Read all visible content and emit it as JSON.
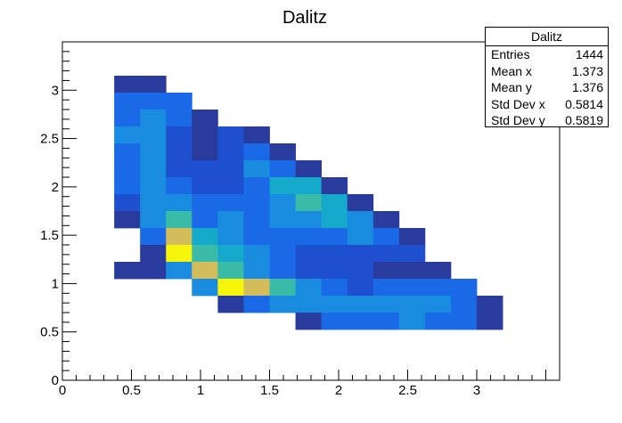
{
  "chart_data": {
    "type": "heatmap",
    "title": "Dalitz",
    "xlabel": "",
    "ylabel": "",
    "xlim": [
      0,
      3.6
    ],
    "ylim": [
      0,
      3.5
    ],
    "x_ticks": [
      "0",
      "0.5",
      "1",
      "1.5",
      "2",
      "2.5",
      "3"
    ],
    "y_ticks": [
      "0",
      "0.5",
      "1",
      "1.5",
      "2",
      "2.5",
      "3"
    ],
    "bin_width_x": 0.1875,
    "bin_width_y": 0.175,
    "colorscale": [
      "#2a3b9e",
      "#1d4fcf",
      "#1a6ae8",
      "#1a8ce0",
      "#15aacb",
      "#39bba8",
      "#d2bd5a",
      "#f6f50a"
    ],
    "level_max": 7,
    "cells": [
      {
        "x": 0.375,
        "y": 2.975,
        "level": 0
      },
      {
        "x": 0.5625,
        "y": 2.975,
        "level": 0
      },
      {
        "x": 0.375,
        "y": 2.8,
        "level": 2
      },
      {
        "x": 0.5625,
        "y": 2.8,
        "level": 2
      },
      {
        "x": 0.75,
        "y": 2.8,
        "level": 2
      },
      {
        "x": 0.375,
        "y": 2.625,
        "level": 2
      },
      {
        "x": 0.5625,
        "y": 2.625,
        "level": 3
      },
      {
        "x": 0.75,
        "y": 2.625,
        "level": 2
      },
      {
        "x": 0.9375,
        "y": 2.625,
        "level": 0
      },
      {
        "x": 0.375,
        "y": 2.45,
        "level": 3
      },
      {
        "x": 0.5625,
        "y": 2.45,
        "level": 3
      },
      {
        "x": 0.75,
        "y": 2.45,
        "level": 1
      },
      {
        "x": 0.9375,
        "y": 2.45,
        "level": 0
      },
      {
        "x": 1.125,
        "y": 2.45,
        "level": 1
      },
      {
        "x": 1.3125,
        "y": 2.45,
        "level": 0
      },
      {
        "x": 0.375,
        "y": 2.275,
        "level": 2
      },
      {
        "x": 0.5625,
        "y": 2.275,
        "level": 3
      },
      {
        "x": 0.75,
        "y": 2.275,
        "level": 1
      },
      {
        "x": 0.9375,
        "y": 2.275,
        "level": 0
      },
      {
        "x": 1.125,
        "y": 2.275,
        "level": 1
      },
      {
        "x": 1.3125,
        "y": 2.275,
        "level": 2
      },
      {
        "x": 1.5,
        "y": 2.275,
        "level": 0
      },
      {
        "x": 0.375,
        "y": 2.1,
        "level": 2
      },
      {
        "x": 0.5625,
        "y": 2.1,
        "level": 3
      },
      {
        "x": 0.75,
        "y": 2.1,
        "level": 1
      },
      {
        "x": 0.9375,
        "y": 2.1,
        "level": 1
      },
      {
        "x": 1.125,
        "y": 2.1,
        "level": 1
      },
      {
        "x": 1.3125,
        "y": 2.1,
        "level": 3
      },
      {
        "x": 1.5,
        "y": 2.1,
        "level": 2
      },
      {
        "x": 1.6875,
        "y": 2.1,
        "level": 0
      },
      {
        "x": 0.375,
        "y": 1.925,
        "level": 2
      },
      {
        "x": 0.5625,
        "y": 1.925,
        "level": 3
      },
      {
        "x": 0.75,
        "y": 1.925,
        "level": 2
      },
      {
        "x": 0.9375,
        "y": 1.925,
        "level": 1
      },
      {
        "x": 1.125,
        "y": 1.925,
        "level": 1
      },
      {
        "x": 1.3125,
        "y": 1.925,
        "level": 2
      },
      {
        "x": 1.5,
        "y": 1.925,
        "level": 4
      },
      {
        "x": 1.6875,
        "y": 1.925,
        "level": 4
      },
      {
        "x": 1.875,
        "y": 1.925,
        "level": 0
      },
      {
        "x": 0.375,
        "y": 1.75,
        "level": 1
      },
      {
        "x": 0.5625,
        "y": 1.75,
        "level": 3
      },
      {
        "x": 0.75,
        "y": 1.75,
        "level": 3
      },
      {
        "x": 0.9375,
        "y": 1.75,
        "level": 2
      },
      {
        "x": 1.125,
        "y": 1.75,
        "level": 2
      },
      {
        "x": 1.3125,
        "y": 1.75,
        "level": 2
      },
      {
        "x": 1.5,
        "y": 1.75,
        "level": 3
      },
      {
        "x": 1.6875,
        "y": 1.75,
        "level": 5
      },
      {
        "x": 1.875,
        "y": 1.75,
        "level": 4
      },
      {
        "x": 2.0625,
        "y": 1.75,
        "level": 0
      },
      {
        "x": 0.375,
        "y": 1.575,
        "level": 0
      },
      {
        "x": 0.5625,
        "y": 1.575,
        "level": 3
      },
      {
        "x": 0.75,
        "y": 1.575,
        "level": 5
      },
      {
        "x": 0.9375,
        "y": 1.575,
        "level": 2
      },
      {
        "x": 1.125,
        "y": 1.575,
        "level": 3
      },
      {
        "x": 1.3125,
        "y": 1.575,
        "level": 2
      },
      {
        "x": 1.5,
        "y": 1.575,
        "level": 3
      },
      {
        "x": 1.6875,
        "y": 1.575,
        "level": 3
      },
      {
        "x": 1.875,
        "y": 1.575,
        "level": 4
      },
      {
        "x": 2.0625,
        "y": 1.575,
        "level": 3
      },
      {
        "x": 2.25,
        "y": 1.575,
        "level": 0
      },
      {
        "x": 0.5625,
        "y": 1.4,
        "level": 2
      },
      {
        "x": 0.75,
        "y": 1.4,
        "level": 6
      },
      {
        "x": 0.9375,
        "y": 1.4,
        "level": 4
      },
      {
        "x": 1.125,
        "y": 1.4,
        "level": 3
      },
      {
        "x": 1.3125,
        "y": 1.4,
        "level": 2
      },
      {
        "x": 1.5,
        "y": 1.4,
        "level": 2
      },
      {
        "x": 1.6875,
        "y": 1.4,
        "level": 2
      },
      {
        "x": 1.875,
        "y": 1.4,
        "level": 2
      },
      {
        "x": 2.0625,
        "y": 1.4,
        "level": 3
      },
      {
        "x": 2.25,
        "y": 1.4,
        "level": 2
      },
      {
        "x": 2.4375,
        "y": 1.4,
        "level": 0
      },
      {
        "x": 0.5625,
        "y": 1.225,
        "level": 0
      },
      {
        "x": 0.75,
        "y": 1.225,
        "level": 7
      },
      {
        "x": 0.9375,
        "y": 1.225,
        "level": 5
      },
      {
        "x": 1.125,
        "y": 1.225,
        "level": 4
      },
      {
        "x": 1.3125,
        "y": 1.225,
        "level": 3
      },
      {
        "x": 1.5,
        "y": 1.225,
        "level": 2
      },
      {
        "x": 1.6875,
        "y": 1.225,
        "level": 1
      },
      {
        "x": 1.875,
        "y": 1.225,
        "level": 1
      },
      {
        "x": 2.0625,
        "y": 1.225,
        "level": 1
      },
      {
        "x": 2.25,
        "y": 1.225,
        "level": 1
      },
      {
        "x": 2.4375,
        "y": 1.225,
        "level": 1
      },
      {
        "x": 0.375,
        "y": 1.05,
        "level": 0
      },
      {
        "x": 0.5625,
        "y": 1.05,
        "level": 0
      },
      {
        "x": 0.75,
        "y": 1.05,
        "level": 3
      },
      {
        "x": 0.9375,
        "y": 1.05,
        "level": 6
      },
      {
        "x": 1.125,
        "y": 1.05,
        "level": 5
      },
      {
        "x": 1.3125,
        "y": 1.05,
        "level": 3
      },
      {
        "x": 1.5,
        "y": 1.05,
        "level": 2
      },
      {
        "x": 1.6875,
        "y": 1.05,
        "level": 1
      },
      {
        "x": 1.875,
        "y": 1.05,
        "level": 1
      },
      {
        "x": 2.0625,
        "y": 1.05,
        "level": 1
      },
      {
        "x": 2.25,
        "y": 1.05,
        "level": 0
      },
      {
        "x": 2.4375,
        "y": 1.05,
        "level": 0
      },
      {
        "x": 2.625,
        "y": 1.05,
        "level": 0
      },
      {
        "x": 0.9375,
        "y": 0.875,
        "level": 3
      },
      {
        "x": 1.125,
        "y": 0.875,
        "level": 7
      },
      {
        "x": 1.3125,
        "y": 0.875,
        "level": 6
      },
      {
        "x": 1.5,
        "y": 0.875,
        "level": 5
      },
      {
        "x": 1.6875,
        "y": 0.875,
        "level": 3
      },
      {
        "x": 1.875,
        "y": 0.875,
        "level": 2
      },
      {
        "x": 2.0625,
        "y": 0.875,
        "level": 1
      },
      {
        "x": 2.25,
        "y": 0.875,
        "level": 2
      },
      {
        "x": 2.4375,
        "y": 0.875,
        "level": 2
      },
      {
        "x": 2.625,
        "y": 0.875,
        "level": 2
      },
      {
        "x": 2.8125,
        "y": 0.875,
        "level": 2
      },
      {
        "x": 1.125,
        "y": 0.7,
        "level": 0
      },
      {
        "x": 1.3125,
        "y": 0.7,
        "level": 2
      },
      {
        "x": 1.5,
        "y": 0.7,
        "level": 3
      },
      {
        "x": 1.6875,
        "y": 0.7,
        "level": 3
      },
      {
        "x": 1.875,
        "y": 0.7,
        "level": 3
      },
      {
        "x": 2.0625,
        "y": 0.7,
        "level": 3
      },
      {
        "x": 2.25,
        "y": 0.7,
        "level": 3
      },
      {
        "x": 2.4375,
        "y": 0.7,
        "level": 3
      },
      {
        "x": 2.625,
        "y": 0.7,
        "level": 3
      },
      {
        "x": 2.8125,
        "y": 0.7,
        "level": 2
      },
      {
        "x": 3.0,
        "y": 0.7,
        "level": 0
      },
      {
        "x": 1.6875,
        "y": 0.525,
        "level": 0
      },
      {
        "x": 1.875,
        "y": 0.525,
        "level": 2
      },
      {
        "x": 2.0625,
        "y": 0.525,
        "level": 2
      },
      {
        "x": 2.25,
        "y": 0.525,
        "level": 2
      },
      {
        "x": 2.4375,
        "y": 0.525,
        "level": 3
      },
      {
        "x": 2.625,
        "y": 0.525,
        "level": 2
      },
      {
        "x": 2.8125,
        "y": 0.525,
        "level": 2
      },
      {
        "x": 3.0,
        "y": 0.525,
        "level": 0
      }
    ]
  },
  "stats": {
    "title": "Dalitz",
    "rows": [
      {
        "label": "Entries",
        "value": "1444"
      },
      {
        "label": "Mean x",
        "value": "1.373"
      },
      {
        "label": "Mean y",
        "value": "1.376"
      },
      {
        "label": "Std Dev x",
        "value": "0.5814"
      },
      {
        "label": "Std Dev y",
        "value": "0.5819"
      }
    ]
  }
}
